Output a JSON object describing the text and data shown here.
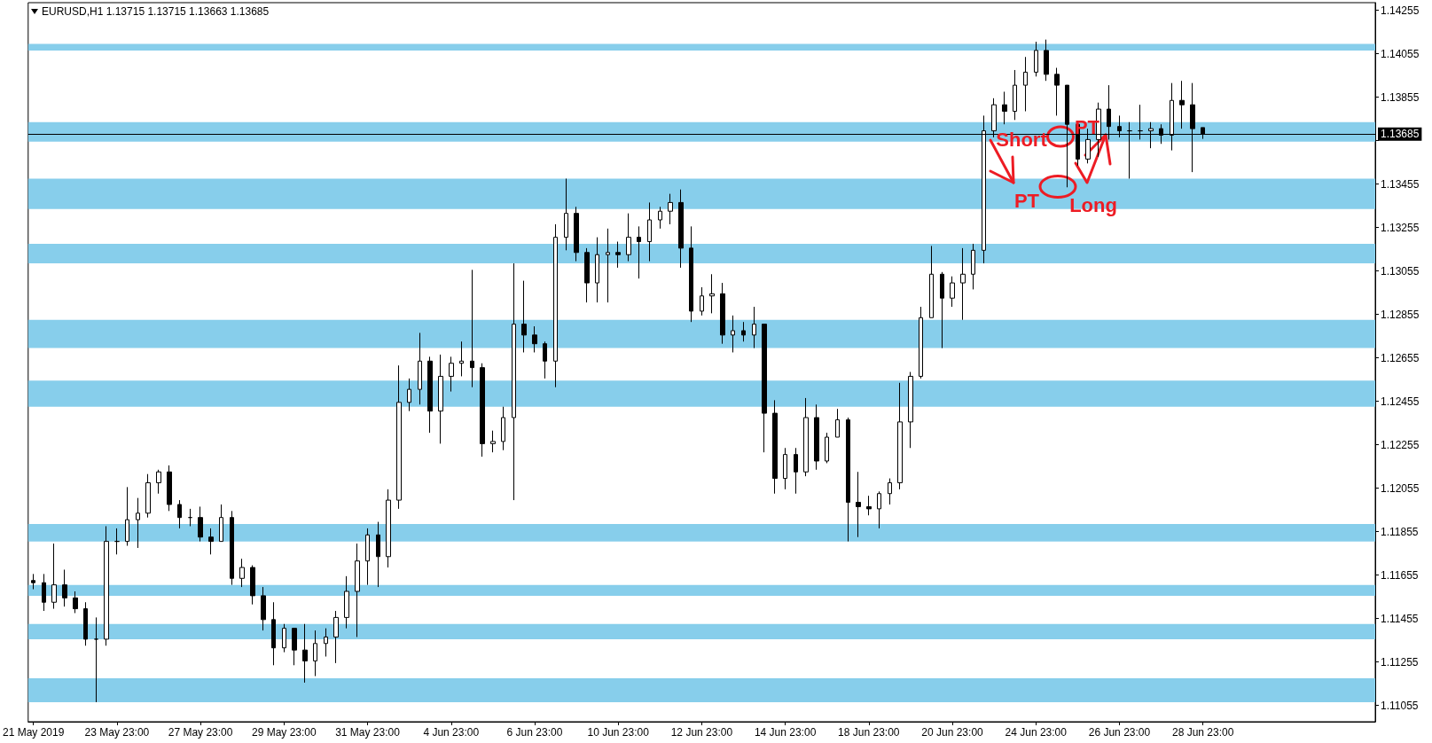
{
  "chart_data": {
    "type": "candlestick",
    "title": "EURUSD,H1 1.13715 1.13715 1.13663 1.13685",
    "color": "#000000",
    "categories": [
      "21 May 2019",
      null,
      null,
      null,
      null,
      null,
      null,
      null,
      "23 May 23:00",
      null,
      null,
      null,
      null,
      null,
      null,
      null,
      "27 May 23:00",
      null,
      null,
      null,
      null,
      null,
      null,
      null,
      "29 May 23:00",
      null,
      null,
      null,
      null,
      null,
      null,
      null,
      "31 May 23:00",
      null,
      null,
      null,
      null,
      null,
      null,
      null,
      "4 Jun 23:00",
      null,
      null,
      null,
      null,
      null,
      null,
      null,
      "6 Jun 23:00",
      null,
      null,
      null,
      null,
      null,
      null,
      null,
      "10 Jun 23:00",
      null,
      null,
      null,
      null,
      null,
      null,
      null,
      "12 Jun 23:00",
      null,
      null,
      null,
      null,
      null,
      null,
      null,
      "14 Jun 23:00",
      null,
      null,
      null,
      null,
      null,
      null,
      null,
      "18 Jun 23:00",
      null,
      null,
      null,
      null,
      null,
      null,
      null,
      "20 Jun 23:00",
      null,
      null,
      null,
      null,
      null,
      null,
      null,
      "24 Jun 23:00",
      null,
      null,
      null,
      null,
      null,
      null,
      null,
      "26 Jun 23:00",
      null,
      null,
      null,
      null,
      null,
      null,
      null,
      "28 Jun 23:00",
      null,
      null,
      null,
      null,
      null,
      null,
      null,
      null,
      null,
      null,
      null,
      null,
      null,
      null,
      null,
      null
    ],
    "ohlc": [
      [
        1.1163,
        1.1166,
        1.1159,
        1.1162
      ],
      [
        1.1162,
        1.1166,
        1.1149,
        1.1153
      ],
      [
        1.1153,
        1.118,
        1.115,
        1.1161
      ],
      [
        1.1161,
        1.1168,
        1.1151,
        1.1155
      ],
      [
        1.1155,
        1.1158,
        1.1148,
        1.115
      ],
      [
        1.115,
        1.1153,
        1.1133,
        1.1136
      ],
      [
        1.1136,
        1.1146,
        1.1107,
        1.1136
      ],
      [
        1.1136,
        1.1188,
        1.1133,
        1.1181
      ],
      [
        1.1181,
        1.1187,
        1.1175,
        1.1181
      ],
      [
        1.1181,
        1.1206,
        1.1179,
        1.1191
      ],
      [
        1.1191,
        1.1201,
        1.1178,
        1.1194
      ],
      [
        1.1194,
        1.1212,
        1.1192,
        1.1208
      ],
      [
        1.1208,
        1.1214,
        1.1203,
        1.1213
      ],
      [
        1.1213,
        1.1216,
        1.1195,
        1.1198
      ],
      [
        1.1198,
        1.12,
        1.1187,
        1.1192
      ],
      [
        1.1192,
        1.1196,
        1.1188,
        1.1192
      ],
      [
        1.1192,
        1.1197,
        1.1181,
        1.1183
      ],
      [
        1.1183,
        1.1187,
        1.1175,
        1.1181
      ],
      [
        1.1181,
        1.1198,
        1.1181,
        1.1192
      ],
      [
        1.1192,
        1.1195,
        1.1161,
        1.1164
      ],
      [
        1.1164,
        1.1173,
        1.116,
        1.1169
      ],
      [
        1.1169,
        1.117,
        1.1152,
        1.1156
      ],
      [
        1.1156,
        1.116,
        1.114,
        1.1145
      ],
      [
        1.1145,
        1.1153,
        1.1124,
        1.1132
      ],
      [
        1.1132,
        1.1143,
        1.113,
        1.1141
      ],
      [
        1.1141,
        1.1141,
        1.1124,
        1.1131
      ],
      [
        1.1131,
        1.1143,
        1.1116,
        1.1126
      ],
      [
        1.1126,
        1.114,
        1.1119,
        1.1134
      ],
      [
        1.1134,
        1.1141,
        1.1128,
        1.1137
      ],
      [
        1.1137,
        1.1149,
        1.1125,
        1.1146
      ],
      [
        1.1146,
        1.1165,
        1.1141,
        1.1158
      ],
      [
        1.1158,
        1.118,
        1.1137,
        1.1172
      ],
      [
        1.1172,
        1.1187,
        1.1161,
        1.1184
      ],
      [
        1.1184,
        1.119,
        1.116,
        1.1174
      ],
      [
        1.1174,
        1.1205,
        1.1169,
        1.12
      ],
      [
        1.12,
        1.1262,
        1.1196,
        1.1245
      ],
      [
        1.1245,
        1.1256,
        1.1241,
        1.1251
      ],
      [
        1.1251,
        1.1277,
        1.1244,
        1.1264
      ],
      [
        1.1264,
        1.1266,
        1.1231,
        1.1241
      ],
      [
        1.1241,
        1.1267,
        1.1226,
        1.1257
      ],
      [
        1.1257,
        1.1266,
        1.125,
        1.1263
      ],
      [
        1.1263,
        1.1273,
        1.1257,
        1.1264
      ],
      [
        1.1264,
        1.1306,
        1.1252,
        1.1261
      ],
      [
        1.1261,
        1.1263,
        1.122,
        1.1226
      ],
      [
        1.1226,
        1.1232,
        1.1222,
        1.1227
      ],
      [
        1.1227,
        1.1243,
        1.1223,
        1.1238
      ],
      [
        1.1238,
        1.1309,
        1.12,
        1.1281
      ],
      [
        1.1281,
        1.1301,
        1.1268,
        1.1276
      ],
      [
        1.1276,
        1.128,
        1.1268,
        1.1272
      ],
      [
        1.1272,
        1.1273,
        1.1256,
        1.1264
      ],
      [
        1.1264,
        1.1327,
        1.1252,
        1.1321
      ],
      [
        1.1321,
        1.1348,
        1.1315,
        1.1332
      ],
      [
        1.1332,
        1.1335,
        1.131,
        1.1314
      ],
      [
        1.1314,
        1.1316,
        1.1291,
        1.13
      ],
      [
        1.13,
        1.1321,
        1.1291,
        1.1313
      ],
      [
        1.1313,
        1.1325,
        1.1291,
        1.1314
      ],
      [
        1.1314,
        1.1319,
        1.1307,
        1.1313
      ],
      [
        1.1313,
        1.1332,
        1.131,
        1.1321
      ],
      [
        1.1321,
        1.1326,
        1.1302,
        1.1319
      ],
      [
        1.1319,
        1.1337,
        1.131,
        1.1329
      ],
      [
        1.1329,
        1.1335,
        1.1325,
        1.1333
      ],
      [
        1.1333,
        1.1341,
        1.1327,
        1.1337
      ],
      [
        1.1337,
        1.1343,
        1.1307,
        1.1316
      ],
      [
        1.1316,
        1.1326,
        1.1282,
        1.1287
      ],
      [
        1.1287,
        1.1298,
        1.1285,
        1.1294
      ],
      [
        1.1294,
        1.1304,
        1.1286,
        1.1295
      ],
      [
        1.1295,
        1.13,
        1.1272,
        1.1276
      ],
      [
        1.1276,
        1.1285,
        1.1268,
        1.1278
      ],
      [
        1.1278,
        1.1282,
        1.1273,
        1.1276
      ],
      [
        1.1276,
        1.1289,
        1.127,
        1.1281
      ],
      [
        1.1281,
        1.1281,
        1.1222,
        1.124
      ],
      [
        1.124,
        1.1246,
        1.1203,
        1.121
      ],
      [
        1.121,
        1.1224,
        1.1205,
        1.1221
      ],
      [
        1.1221,
        1.1224,
        1.1203,
        1.1213
      ],
      [
        1.1213,
        1.1247,
        1.1211,
        1.1238
      ],
      [
        1.1238,
        1.1244,
        1.1214,
        1.1218
      ],
      [
        1.1218,
        1.1231,
        1.1217,
        1.1229
      ],
      [
        1.1229,
        1.1242,
        1.1229,
        1.1237
      ],
      [
        1.1237,
        1.1238,
        1.1181,
        1.1199
      ],
      [
        1.1199,
        1.1213,
        1.1183,
        1.1197
      ],
      [
        1.1197,
        1.1202,
        1.1193,
        1.1196
      ],
      [
        1.1196,
        1.1204,
        1.1187,
        1.1203
      ],
      [
        1.1203,
        1.121,
        1.1198,
        1.1208
      ],
      [
        1.1208,
        1.1254,
        1.1205,
        1.1236
      ],
      [
        1.1236,
        1.1259,
        1.1224,
        1.1257
      ],
      [
        1.1257,
        1.1289,
        1.1256,
        1.1284
      ],
      [
        1.1284,
        1.1317,
        1.1284,
        1.1304
      ],
      [
        1.1304,
        1.1305,
        1.127,
        1.1293
      ],
      [
        1.1293,
        1.1303,
        1.1289,
        1.13
      ],
      [
        1.13,
        1.1316,
        1.1283,
        1.1304
      ],
      [
        1.1304,
        1.1318,
        1.1297,
        1.1315
      ],
      [
        1.1315,
        1.1377,
        1.1309,
        1.137
      ],
      [
        1.137,
        1.1385,
        1.1367,
        1.1382
      ],
      [
        1.1382,
        1.1388,
        1.1373,
        1.1379
      ],
      [
        1.1379,
        1.1398,
        1.1375,
        1.1391
      ],
      [
        1.1391,
        1.1404,
        1.1379,
        1.1397
      ],
      [
        1.1397,
        1.1411,
        1.1395,
        1.1407
      ],
      [
        1.1407,
        1.1412,
        1.1393,
        1.1396
      ],
      [
        1.1396,
        1.1399,
        1.1377,
        1.1391
      ],
      [
        1.1391,
        1.1391,
        1.1344,
        1.1373
      ],
      [
        1.1373,
        1.1373,
        1.1354,
        1.1357
      ],
      [
        1.1357,
        1.1371,
        1.1355,
        1.1366
      ],
      [
        1.1366,
        1.1383,
        1.1358,
        1.138
      ],
      [
        1.138,
        1.1391,
        1.1366,
        1.1372
      ],
      [
        1.1372,
        1.1377,
        1.1367,
        1.137
      ],
      [
        1.137,
        1.1374,
        1.1348,
        1.137
      ],
      [
        1.137,
        1.1382,
        1.1366,
        1.137
      ],
      [
        1.137,
        1.1374,
        1.1362,
        1.1371
      ],
      [
        1.1371,
        1.1373,
        1.1364,
        1.1368
      ],
      [
        1.1368,
        1.1392,
        1.1361,
        1.1384
      ],
      [
        1.1384,
        1.1393,
        1.1371,
        1.1382
      ],
      [
        1.1382,
        1.1392,
        1.1351,
        1.1371
      ],
      [
        1.13715,
        1.13715,
        1.13663,
        1.13685
      ],
      null,
      null,
      null,
      null,
      null,
      null,
      null,
      null,
      null,
      null,
      null,
      null,
      null,
      null,
      null,
      null
    ],
    "ylim": [
      1.1098,
      1.1429
    ],
    "yticks": [
      1.11055,
      1.11255,
      1.11455,
      1.11655,
      1.11855,
      1.12055,
      1.12255,
      1.12455,
      1.12655,
      1.12855,
      1.13055,
      1.13255,
      1.13455,
      {
        "value": 1.13655,
        "label": null
      },
      1.13855,
      1.14055,
      1.14255
    ],
    "ref_lines": [
      {
        "axis": "y",
        "value": 1.13685,
        "label": "1.13685",
        "color": "#000000"
      }
    ],
    "bands": [
      {
        "axis": "y",
        "from": 1.1407,
        "to": 1.141,
        "color": "#87ceeb"
      },
      {
        "axis": "y",
        "from": 1.1365,
        "to": 1.1374,
        "color": "#87ceeb"
      },
      {
        "axis": "y",
        "from": 1.1334,
        "to": 1.1348,
        "color": "#87ceeb"
      },
      {
        "axis": "y",
        "from": 1.1309,
        "to": 1.1318,
        "color": "#87ceeb"
      },
      {
        "axis": "y",
        "from": 1.127,
        "to": 1.1283,
        "color": "#87ceeb"
      },
      {
        "axis": "y",
        "from": 1.1243,
        "to": 1.1255,
        "color": "#87ceeb"
      },
      {
        "axis": "y",
        "from": 1.1181,
        "to": 1.1189,
        "color": "#87ceeb"
      },
      {
        "axis": "y",
        "from": 1.1156,
        "to": 1.1161,
        "color": "#87ceeb"
      },
      {
        "axis": "y",
        "from": 1.1136,
        "to": 1.1143,
        "color": "#87ceeb"
      },
      {
        "axis": "y",
        "from": 1.1107,
        "to": 1.1118,
        "color": "#87ceeb"
      }
    ],
    "annotations": [
      "Short",
      {
        "text": "PT",
        "y": 1.1348
      },
      "PT",
      "Long"
    ]
  }
}
